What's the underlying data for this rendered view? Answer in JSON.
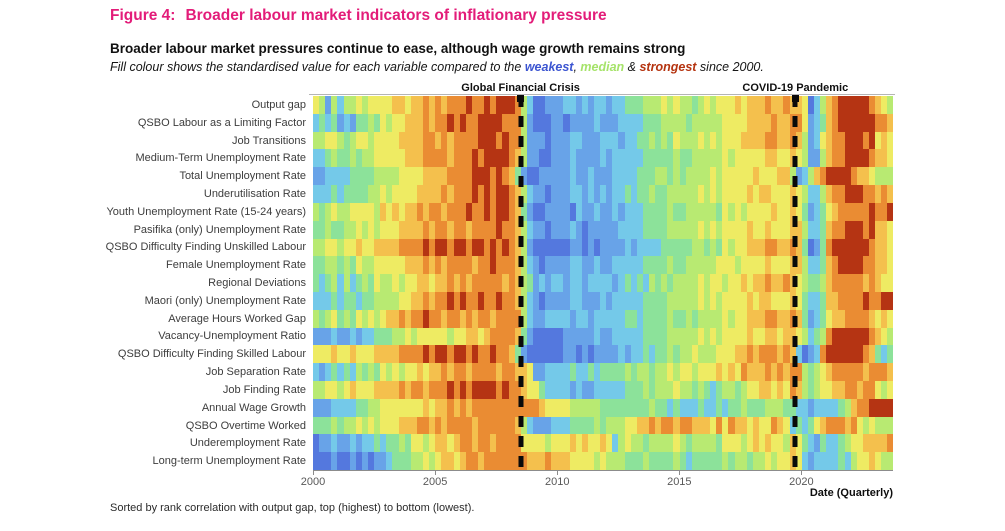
{
  "figure": {
    "title_prefix": "Figure 4:",
    "title": "Broader labour market indicators of inflationary pressure",
    "title_color": "#e31c79",
    "heading": "Broader labour market pressures continue to ease, although wage growth remains strong",
    "subtitle_prefix": "Fill colour shows the standardised value for each variable compared to the ",
    "subtitle_comma": ", ",
    "subtitle_amp": " & ",
    "subtitle_suffix": " since 2000.",
    "legend": {
      "weakest_label": "weakest",
      "weakest_color": "#3c55d1",
      "median_label": "median",
      "median_color": "#a6e36a",
      "strongest_label": "strongest",
      "strongest_color": "#b5330f"
    },
    "footnote": "Sorted by rank correlation with output gap, top (highest) to bottom (lowest).",
    "x_axis_label": "Date (Quarterly)"
  },
  "chart_data": {
    "type": "heatmap",
    "x_start": "2000Q1",
    "x_end": "2023Q3",
    "x_step": "quarter",
    "quarters_total": 95,
    "x_ticks": [
      {
        "label": "2000",
        "year": 2000
      },
      {
        "label": "2005",
        "year": 2005
      },
      {
        "label": "2010",
        "year": 2010
      },
      {
        "label": "2015",
        "year": 2015
      },
      {
        "label": "2020",
        "year": 2020
      }
    ],
    "annotations": [
      {
        "label": "Global Financial Crisis",
        "period": "2008Q3",
        "quarter_index": 34
      },
      {
        "label": "COVID-19 Pandemic",
        "period": "2020Q1",
        "quarter_index": 79
      }
    ],
    "value_encoding": "one digit per quarter, 0 = weakest (deep blue) ... 9 = strongest (dark red), standardised value vs 2000-2023 distribution",
    "palette": [
      "#3e51c6",
      "#5478de",
      "#68a3e8",
      "#74c9e9",
      "#8ce29a",
      "#b8ea72",
      "#eeeb63",
      "#f4c04d",
      "#ea8c33",
      "#b53413"
    ],
    "rows": [
      {
        "label": "Output gap",
        "values": "65253556566667767787878889889899985311222332323323344455565655456566676777877877613578999998765"
      },
      {
        "label": "QSBO Labour as a Limiting Factor",
        "values": "34342324454656677787889898899998885211122122223222333344455554555556666777787788623478999999887"
      },
      {
        "label": "Job Transitions",
        "values": "55665456656666777788787888899989885222122233222333233445454655565656667777887787523678899989676"
      },
      {
        "label": "Medium-Term Unemployment Rate",
        "values": "33454454556666677788887888989999875221122232222323333344444544555556566666776676522578899998776"
      },
      {
        "label": "Total Unemployment Rate",
        "values": "22333344445555666677778888999898742112222232232223333444554545555656666676667752357899 998776"
      },
      {
        "label": "Underutilisation Rate",
        "values": "33343444455656666777787888989899875322122233232323343445445555565656666767766676533578899988787"
      },
      {
        "label": "Youth Unemployment Rate (15-24 years)",
        "values": "54565566665767677878878889889899874211222213223223233344445445555546565666676676423467888889889"
      },
      {
        "label": "Pasifika (only) Unemployment Rate",
        "values": "44544556565666777787887887888898875322122232122222333344445555565656666766766677533478899989776"
      },
      {
        "label": "QSBO Difficulty Finding Unskilled Labour",
        "values": "55665667667777888898998998998989875211111122121222232333344444554546566777887787412489999998776"
      },
      {
        "label": "Female Unemployment Rate",
        "values": "44554546556666677787878888788988875321222233223223333344445445555566656666766677533478999988776"
      },
      {
        "label": "Regional Deviations",
        "values": "43453534546556566776778787888887875423233233233332343435454555565665667677877876544578888878766"
      },
      {
        "label": "Maori (only) Unemployment Rate",
        "values": "33343443445555667787889898898898875321222233222323333344445555565656666767766676433477888898899"
      },
      {
        "label": "Average Hours Worked Gap",
        "values": "54564546565677878898878878788788885322333323323333344344445445455556566777887787423467788887676"
      },
      {
        "label": "Vacancy-Unemployment Ratio",
        "values": "22232232334445565666665667767888874211111222223223333344445555565656666766776776534589999998765"
      },
      {
        "label": "QSBO Difficulty Finding Skilled Labour",
        "values": "66676676667777888898998998988988742111111221212222323343445455655566677878887873123899999987434"
      },
      {
        "label": "Job Separation Rate",
        "values": "32343435454656566767787887888878877622333343343444454554556566566676768777878788545678888878887"
      },
      {
        "label": "Job Finding Rate",
        "values": "55665676667777878878889898999989887664333323223333344454555655454345545667767687545667788788656"
      },
      {
        "label": "Annual Wage Growth",
        "values": "22233334455666666676778787888888888887666655555444444445443433343343445444555443323333457889999"
      },
      {
        "label": "QSBO Overtime Worked",
        "values": "44454556565666777887878888788888875322233344445455566778788788777686877676687634346788 878656"
      },
      {
        "label": "Underemployment Rate",
        "values": "12232232334344546656776788788788886666566676766763565545555654555546665676766576432433456677778"
      },
      {
        "label": "Long-term Unemployment Rate",
        "values": "11121121212234445565677678878888888777877766665655544454444543444445455455656676323333435667655"
      }
    ]
  }
}
